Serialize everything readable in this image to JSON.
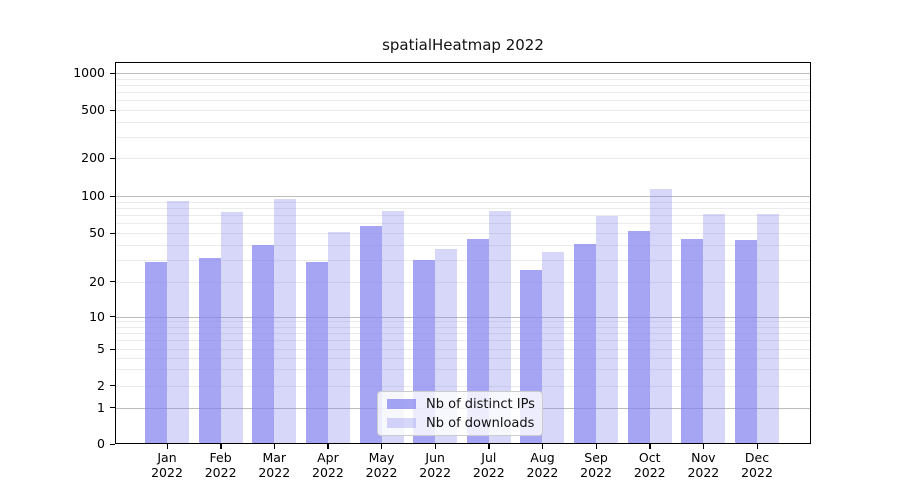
{
  "title": "spatialHeatmap 2022",
  "chart_data": {
    "type": "bar",
    "title": "spatialHeatmap 2022",
    "scale": "symlog",
    "grid": true,
    "legend_position": "lower center",
    "categories": [
      "Jan 2022",
      "Feb 2022",
      "Mar 2022",
      "Apr 2022",
      "May 2022",
      "Jun 2022",
      "Jul 2022",
      "Aug 2022",
      "Sep 2022",
      "Oct 2022",
      "Nov 2022",
      "Dec 2022"
    ],
    "series": [
      {
        "name": "Nb of distinct IPs",
        "color": "rgba(130,130,240,0.72)",
        "values": [
          29,
          31,
          40,
          29,
          57,
          30,
          45,
          25,
          41,
          52,
          45,
          44
        ]
      },
      {
        "name": "Nb of downloads",
        "color": "rgba(130,130,240,0.32)",
        "values": [
          91,
          74,
          95,
          51,
          76,
          37,
          75,
          35,
          69,
          114,
          72,
          71
        ]
      }
    ],
    "y_ticks": [
      0,
      1,
      2,
      5,
      10,
      20,
      50,
      100,
      200,
      500,
      1000
    ],
    "y_major_gridlines": [
      1,
      10,
      100,
      1000
    ],
    "y_minor_gridlines": [
      2,
      3,
      4,
      5,
      6,
      7,
      8,
      9,
      20,
      30,
      40,
      50,
      60,
      70,
      80,
      90,
      200,
      300,
      400,
      500,
      600,
      700,
      800,
      900
    ],
    "ylim": [
      0,
      1200
    ]
  },
  "colors": {
    "bar_distinct_ips": "rgba(130,130,240,0.72)",
    "bar_downloads": "rgba(130,130,240,0.32)",
    "grid_major": "#bdbdbd",
    "grid_minor": "#ebebeb",
    "spine": "#000000",
    "background": "#ffffff"
  },
  "legend": {
    "items": [
      "Nb of distinct IPs",
      "Nb of downloads"
    ]
  }
}
